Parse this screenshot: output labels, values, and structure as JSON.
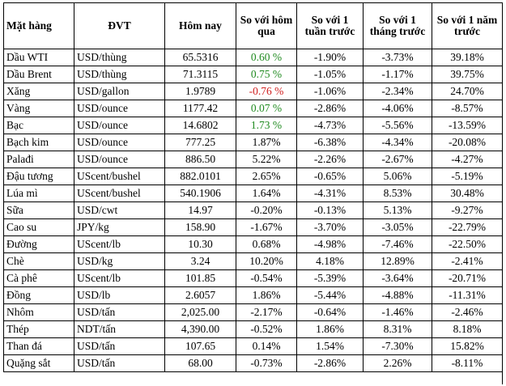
{
  "headers": {
    "item": "Mặt hàng",
    "unit": "ĐVT",
    "today": "Hôm nay",
    "vs_yesterday": "So với hôm qua",
    "vs_week": "So với 1 tuần trước",
    "vs_month": "So với 1 tháng trước",
    "vs_year": "So với 1 năm trước"
  },
  "rows": [
    {
      "item": "Dầu WTI",
      "unit": "USD/thùng",
      "today": "65.5316",
      "d": "0.60 %",
      "d_tone": "pos",
      "w": "-1.90%",
      "m": "-3.73%",
      "y": "39.18%"
    },
    {
      "item": "Dầu Brent",
      "unit": "USD/thùng",
      "today": "71.3115",
      "d": "0.75 %",
      "d_tone": "pos",
      "w": "-1.05%",
      "m": "-1.17%",
      "y": "39.75%"
    },
    {
      "item": "Xăng",
      "unit": "USD/gallon",
      "today": "1.9789",
      "d": "-0.76 %",
      "d_tone": "neg",
      "w": "-1.06%",
      "m": "-2.34%",
      "y": "24.70%"
    },
    {
      "item": "Vàng",
      "unit": "USD/ounce",
      "today": "1177.42",
      "d": "0.07 %",
      "d_tone": "pos",
      "w": "-2.86%",
      "m": "-4.06%",
      "y": "-8.57%"
    },
    {
      "item": "Bạc",
      "unit": "USD/ounce",
      "today": "14.6802",
      "d": "1.73 %",
      "d_tone": "pos",
      "w": "-4.73%",
      "m": "-5.56%",
      "y": "-13.59%"
    },
    {
      "item": "Bạch kim",
      "unit": "USD/ounce",
      "today": "777.25",
      "d": "1.87%",
      "d_tone": "",
      "w": "-6.38%",
      "m": "-4.34%",
      "y": "-20.08%"
    },
    {
      "item": "Palađi",
      "unit": "USD/ounce",
      "today": "886.50",
      "d": "5.22%",
      "d_tone": "",
      "w": "-2.26%",
      "m": "-2.67%",
      "y": "-4.27%"
    },
    {
      "item": "Đậu tương",
      "unit": "UScent/bushel",
      "today": "882.0101",
      "d": "2.65%",
      "d_tone": "",
      "w": "-0.65%",
      "m": "5.06%",
      "y": "-5.19%"
    },
    {
      "item": "Lúa mì",
      "unit": "UScent/bushel",
      "today": "540.1906",
      "d": "1.64%",
      "d_tone": "",
      "w": "-4.31%",
      "m": "8.53%",
      "y": "30.48%"
    },
    {
      "item": "Sữa",
      "unit": "USD/cwt",
      "today": "14.97",
      "d": "-0.20%",
      "d_tone": "",
      "w": "-0.13%",
      "m": "5.13%",
      "y": "-9.27%"
    },
    {
      "item": "Cao su",
      "unit": "JPY/kg",
      "today": "158.90",
      "d": "-1.67%",
      "d_tone": "",
      "w": "-3.70%",
      "m": "-3.05%",
      "y": "-22.79%"
    },
    {
      "item": "Đường",
      "unit": "UScent/lb",
      "today": "10.30",
      "d": "0.68%",
      "d_tone": "",
      "w": "-4.98%",
      "m": "-7.46%",
      "y": "-22.50%"
    },
    {
      "item": "Chè",
      "unit": "USD/kg",
      "today": "3.24",
      "d": "10.20%",
      "d_tone": "",
      "w": "4.18%",
      "m": "12.89%",
      "y": "-2.41%"
    },
    {
      "item": "Cà phê",
      "unit": "UScent/lb",
      "today": "101.85",
      "d": "-0.54%",
      "d_tone": "",
      "w": "-5.39%",
      "m": "-3.64%",
      "y": "-20.71%"
    },
    {
      "item": "Đồng",
      "unit": "USD/lb",
      "today": "2.6057",
      "d": "1.86%",
      "d_tone": "",
      "w": "-5.44%",
      "m": "-4.88%",
      "y": "-11.31%"
    },
    {
      "item": "Nhôm",
      "unit": "USD/tấn",
      "today": "2,025.00",
      "d": "-2.17%",
      "d_tone": "",
      "w": "-0.64%",
      "m": "-1.46%",
      "y": "-2.46%"
    },
    {
      "item": "Thép",
      "unit": "NDT/tấn",
      "today": "4,390.00",
      "d": "-0.52%",
      "d_tone": "",
      "w": "1.86%",
      "m": "8.31%",
      "y": "8.18%"
    },
    {
      "item": "Than đá",
      "unit": "USD/tấn",
      "today": "107.65",
      "d": "0.14%",
      "d_tone": "",
      "w": "1.54%",
      "m": "-7.30%",
      "y": "15.82%"
    },
    {
      "item": "Quặng sắt",
      "unit": "USD/tấn",
      "today": "68.00",
      "d": "-0.73%",
      "d_tone": "",
      "w": "-2.86%",
      "m": "2.26%",
      "y": "-8.11%"
    }
  ]
}
